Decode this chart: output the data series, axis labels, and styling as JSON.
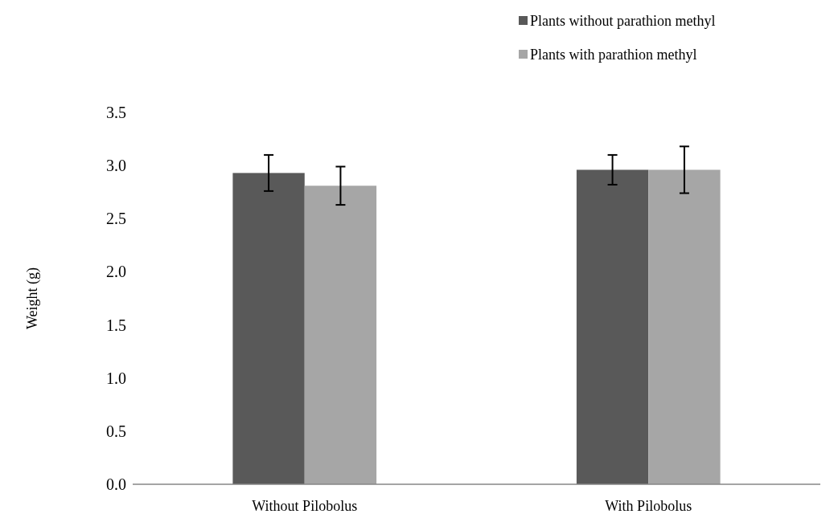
{
  "chart_data": {
    "type": "bar",
    "ylabel": "Weight (g)",
    "categories": [
      "Without Pilobolus",
      "With Pilobolus"
    ],
    "series": [
      {
        "name": "Plants without parathion methyl",
        "color": "#595959",
        "values": [
          2.93,
          2.96
        ],
        "errors": [
          0.17,
          0.14
        ]
      },
      {
        "name": "Plants with parathion methyl",
        "color": "#a6a6a6",
        "values": [
          2.81,
          2.96
        ],
        "errors": [
          0.18,
          0.22
        ]
      }
    ],
    "ylim": [
      0,
      3.5
    ],
    "yticks": [
      {
        "value": 0,
        "label": "0.0"
      },
      {
        "value": 0.5,
        "label": "0.5"
      },
      {
        "value": 1,
        "label": "1.0"
      },
      {
        "value": 1.5,
        "label": "1.5"
      },
      {
        "value": 2,
        "label": "2.0"
      },
      {
        "value": 2.5,
        "label": "2.5"
      },
      {
        "value": 3,
        "label": "3.0"
      },
      {
        "value": 3.5,
        "label": "3.5"
      }
    ],
    "grid": false,
    "legend": "top right"
  }
}
